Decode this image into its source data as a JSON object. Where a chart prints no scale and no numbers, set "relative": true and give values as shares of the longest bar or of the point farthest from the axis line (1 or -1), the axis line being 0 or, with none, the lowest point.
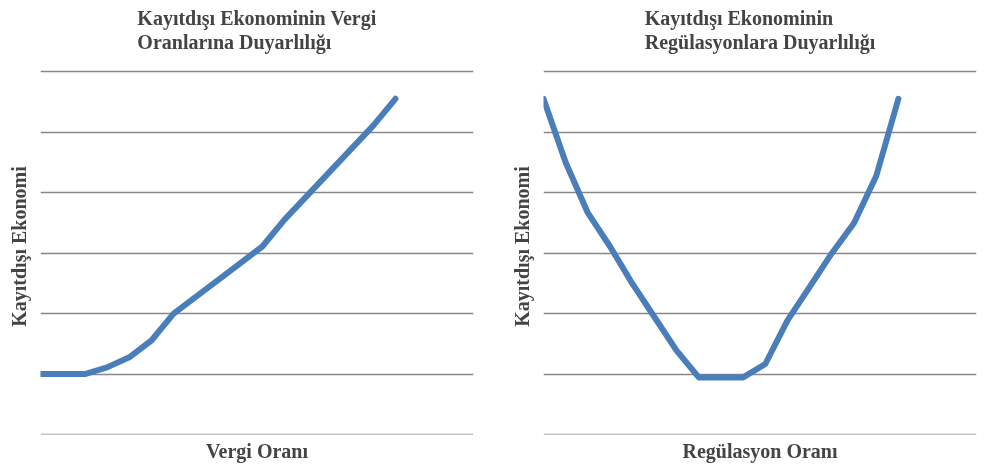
{
  "chart_data": [
    {
      "type": "line",
      "title": "Kayıtdışı Ekonominin Vergi\nOranlarına Duyarlılığı",
      "xlabel": "Vergi Oranı",
      "ylabel": "Kayıtdışı Ekonomi",
      "relative": true,
      "grid": "y",
      "categories": [
        null,
        null,
        null,
        null,
        null,
        null,
        null,
        null,
        null,
        null,
        null,
        null,
        null,
        null,
        null,
        null,
        null
      ],
      "series": [
        {
          "color": "#4a7ebb",
          "values": [
            0.18,
            0.18,
            0.18,
            0.2,
            0.23,
            0.28,
            0.36,
            0.41,
            0.46,
            0.51,
            0.56,
            0.64,
            0.71,
            0.78,
            0.85,
            0.92,
            1
          ]
        }
      ]
    },
    {
      "type": "line",
      "title": "Kayıtdışı Ekonominin\nRegülasyonlara Duyarlılığı",
      "xlabel": "Regülasyon Oranı",
      "ylabel": "Kayıtdışı Ekonomi",
      "relative": true,
      "grid": "y",
      "categories": [
        null,
        null,
        null,
        null,
        null,
        null,
        null,
        null,
        null,
        null,
        null,
        null,
        null,
        null,
        null,
        null,
        null
      ],
      "series": [
        {
          "color": "#4a7ebb",
          "values": [
            1,
            0.81,
            0.66,
            0.56,
            0.45,
            0.35,
            0.25,
            0.17,
            0.17,
            0.17,
            0.21,
            0.34,
            0.44,
            0.54,
            0.63,
            0.77,
            1
          ]
        }
      ]
    }
  ]
}
